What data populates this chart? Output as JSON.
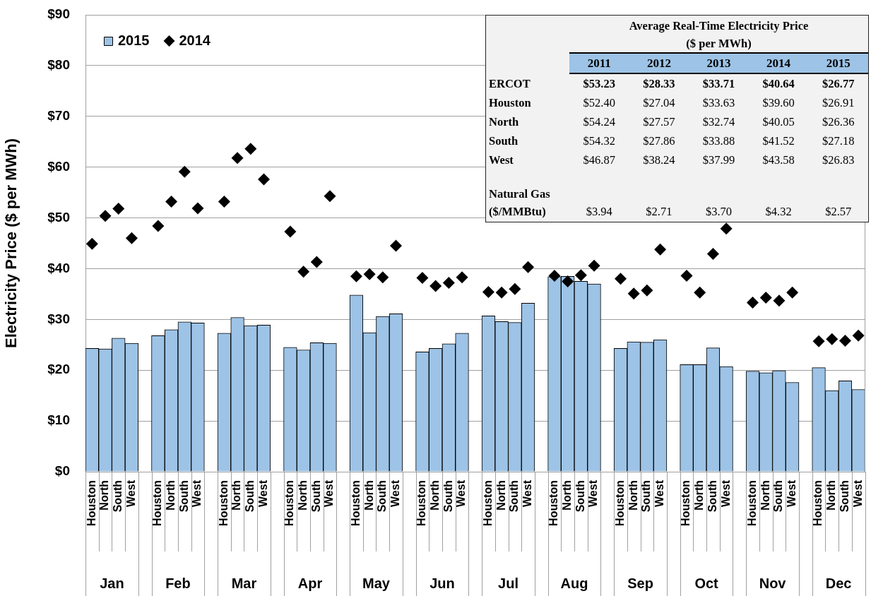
{
  "chart_data": [
    {
      "type": "bar",
      "ylabel": "Electricity Price ($ per MWh)",
      "categories": [
        "Houston",
        "North",
        "South",
        "West",
        null,
        "Houston",
        "North",
        "South",
        "West",
        null,
        "Houston",
        "North",
        "South",
        "West",
        null,
        "Houston",
        "North",
        "South",
        "West",
        null,
        "Houston",
        "North",
        "South",
        "West",
        null,
        "Houston",
        "North",
        "South",
        "West",
        null,
        "Houston",
        "North",
        "South",
        "West",
        null,
        "Houston",
        "North",
        "South",
        "West",
        null,
        "Houston",
        "North",
        "South",
        "West",
        null,
        "Houston",
        "North",
        "South",
        "West",
        null,
        "Houston",
        "North",
        "South",
        "West",
        null,
        "Houston",
        "North",
        "South",
        "West"
      ],
      "series": [
        {
          "name": "2015",
          "type": "bar",
          "color": "#9dc3e6",
          "values": [
            24.3,
            24.2,
            26.3,
            25.3,
            null,
            26.8,
            28.0,
            29.5,
            29.3,
            null,
            27.3,
            30.4,
            28.8,
            28.9,
            null,
            24.5,
            24.0,
            25.4,
            25.3,
            null,
            34.8,
            27.4,
            30.6,
            31.1,
            null,
            23.6,
            24.3,
            25.2,
            27.3,
            null,
            30.7,
            29.6,
            29.4,
            33.2,
            null,
            38.4,
            38.5,
            37.5,
            37.0,
            null,
            24.3,
            25.6,
            25.5,
            26.0,
            null,
            21.1,
            21.1,
            24.4,
            20.7,
            null,
            19.8,
            19.5,
            19.9,
            17.6,
            null,
            20.5,
            16.0,
            17.9,
            16.2
          ]
        },
        {
          "name": "2014",
          "type": "scatter",
          "color": "#000000",
          "values": [
            44.9,
            50.4,
            51.8,
            46.0,
            null,
            48.4,
            53.2,
            59.1,
            51.9,
            null,
            53.2,
            61.8,
            63.6,
            57.6,
            null,
            47.3,
            39.4,
            41.3,
            54.3,
            null,
            38.5,
            38.9,
            38.3,
            44.5,
            null,
            38.2,
            36.6,
            37.2,
            38.3,
            null,
            35.4,
            35.3,
            36.0,
            40.3,
            null,
            38.6,
            37.5,
            38.7,
            40.6,
            null,
            38.0,
            35.1,
            35.7,
            43.8,
            null,
            38.6,
            35.3,
            42.9,
            47.9,
            null,
            33.3,
            34.3,
            33.7,
            35.3,
            null,
            25.7,
            26.1,
            25.8,
            26.8
          ]
        }
      ],
      "ylim": [
        0,
        90
      ],
      "yticks": [
        {
          "value": 0,
          "label": "$0"
        },
        {
          "value": 10,
          "label": "$10"
        },
        {
          "value": 20,
          "label": "$20"
        },
        {
          "value": 30,
          "label": "$30"
        },
        {
          "value": 40,
          "label": "$40"
        },
        {
          "value": 50,
          "label": "$50"
        },
        {
          "value": 60,
          "label": "$60"
        },
        {
          "value": 70,
          "label": "$70"
        },
        {
          "value": 80,
          "label": "$80"
        },
        {
          "value": 90,
          "label": "$90"
        }
      ],
      "grid": "y",
      "legend": "top left",
      "marker": "diamond",
      "annotations": [
        "Jan",
        "Feb",
        "Mar",
        "Apr",
        "May",
        "Jun",
        "Jul",
        "Aug",
        "Sep",
        "Oct",
        "Nov",
        "Dec"
      ]
    },
    {
      "type": "heatmap",
      "title": "Average Real-Time Electricity Price",
      "subtitle": "($ per MWh)",
      "color": "#9dc3e6",
      "categories": [
        "2011",
        "2012",
        "2013",
        "2014",
        "2015"
      ],
      "y_categories": [
        "ERCOT",
        "Houston",
        "North",
        "South",
        "West",
        "Natural Gas ($/MMBtu)"
      ],
      "cells": [
        [
          53.23,
          28.33,
          33.71,
          40.64,
          26.77
        ],
        [
          52.4,
          27.04,
          33.63,
          39.6,
          26.91
        ],
        [
          54.24,
          27.57,
          32.74,
          40.05,
          26.36
        ],
        [
          54.32,
          27.86,
          33.88,
          41.52,
          27.18
        ],
        [
          46.87,
          38.24,
          37.99,
          43.58,
          26.83
        ],
        [
          3.94,
          2.71,
          3.7,
          4.32,
          2.57
        ]
      ],
      "cell_labels": [
        [
          "$53.23",
          "$28.33",
          "$33.71",
          "$40.64",
          "$26.77"
        ],
        [
          "$52.40",
          "$27.04",
          "$33.63",
          "$39.60",
          "$26.91"
        ],
        [
          "$54.24",
          "$27.57",
          "$32.74",
          "$40.05",
          "$26.36"
        ],
        [
          "$54.32",
          "$27.86",
          "$33.88",
          "$41.52",
          "$27.18"
        ],
        [
          "$46.87",
          "$38.24",
          "$37.99",
          "$43.58",
          "$26.83"
        ],
        [
          "$3.94",
          "$2.71",
          "$3.70",
          "$4.32",
          "$2.57"
        ]
      ]
    }
  ]
}
